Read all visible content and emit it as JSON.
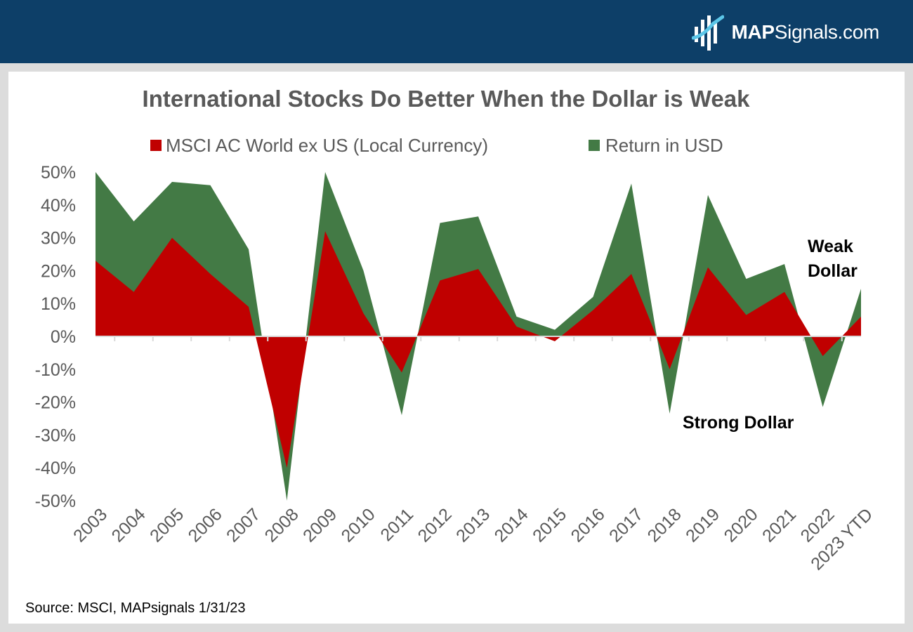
{
  "brand": {
    "name_bold": "MAP",
    "name_rest": "Signals.com",
    "logo_icon": "mapsignals-logo-icon"
  },
  "colors": {
    "header": "#0d3f68",
    "local": "#c00000",
    "usd": "#437a45",
    "text": "#595959"
  },
  "chart_data": {
    "type": "area",
    "title": "International Stocks Do Better When the Dollar is Weak",
    "categories": [
      "2003",
      "2004",
      "2005",
      "2006",
      "2007",
      "2008",
      "2009",
      "2010",
      "2011",
      "2012",
      "2013",
      "2014",
      "2015",
      "2016",
      "2017",
      "2018",
      "2019",
      "2020",
      "2021",
      "2022",
      "2023 YTD"
    ],
    "series": [
      {
        "name": "MSCI AC World ex US (Local Currency)",
        "color": "#c00000",
        "values": [
          23,
          13.5,
          30,
          19,
          9,
          -40,
          32,
          7,
          -11,
          17,
          20.5,
          3,
          -1.5,
          8,
          19,
          -10,
          21,
          6.5,
          13.5,
          -6,
          6
        ]
      },
      {
        "name": "Return in USD",
        "color": "#437a45",
        "values": [
          50,
          35,
          47,
          46,
          26.5,
          -50,
          50,
          20,
          -24,
          34.5,
          36.5,
          6,
          2,
          12,
          46.5,
          -23.5,
          43,
          17.5,
          22,
          -21.5,
          14.5
        ]
      }
    ],
    "ylim": [
      -50,
      50
    ],
    "yticks": [
      50,
      40,
      30,
      20,
      10,
      0,
      -10,
      -20,
      -30,
      -40,
      -50
    ],
    "ytick_labels": [
      "50%",
      "40%",
      "30%",
      "20%",
      "10%",
      "0%",
      "-10%",
      "-20%",
      "-30%",
      "-40%",
      "-50%"
    ],
    "legend_position": "top",
    "grid": false,
    "annotations": [
      {
        "lines": [
          "Weak",
          "Dollar"
        ],
        "near": "2023 YTD"
      },
      {
        "lines": [
          "Strong Dollar"
        ],
        "near": "2019"
      }
    ]
  },
  "source": "Source: MSCI, MAPsignals 1/31/23"
}
